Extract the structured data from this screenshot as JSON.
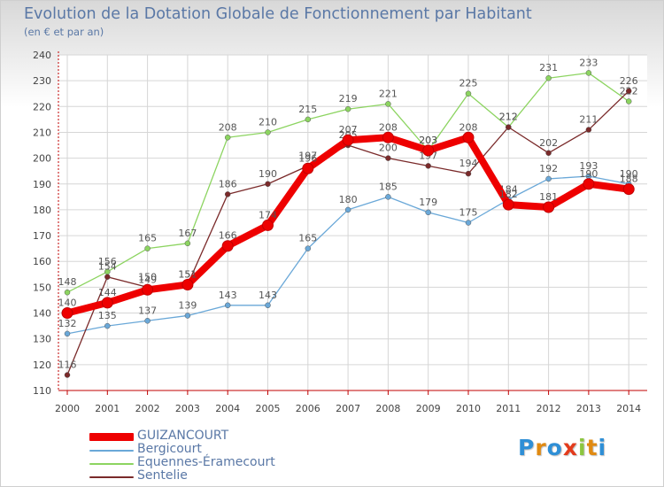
{
  "title": "Evolution de la Dotation Globale de Fonctionnement par Habitant",
  "subtitle": "(en € et par an)",
  "logo": {
    "letters": [
      "P",
      "r",
      "o",
      "x",
      "i",
      "t",
      "i"
    ],
    "colors": [
      "#2f8fd6",
      "#e08a12",
      "#2f8fd6",
      "#e33b1c",
      "#8cc63f",
      "#e08a12",
      "#2f8fd6"
    ]
  },
  "chart_data": {
    "type": "line",
    "x": [
      "2000",
      "2001",
      "2002",
      "2003",
      "2004",
      "2005",
      "2006",
      "2007",
      "2008",
      "2009",
      "2010",
      "2011",
      "2012",
      "2013",
      "2014"
    ],
    "ylim": [
      110,
      240
    ],
    "yticks": [
      110,
      120,
      130,
      140,
      150,
      160,
      170,
      180,
      190,
      200,
      210,
      220,
      230,
      240
    ],
    "grid": true,
    "legend_position": "bottom-left",
    "series": [
      {
        "name": "Equennes-Éramecourt",
        "color": "#8cd460",
        "values": [
          148,
          156,
          165,
          167,
          208,
          210,
          215,
          219,
          221,
          203,
          225,
          212,
          231,
          233,
          222
        ]
      },
      {
        "name": "Bergicourt",
        "color": "#6aa8d8",
        "values": [
          132,
          135,
          137,
          139,
          143,
          143,
          165,
          180,
          185,
          179,
          175,
          184,
          192,
          193,
          190
        ]
      },
      {
        "name": "Sentelie",
        "color": "#7a2a2a",
        "values": [
          116,
          154,
          150,
          151,
          186,
          190,
          197,
          205,
          200,
          197,
          194,
          212,
          202,
          211,
          226
        ]
      },
      {
        "name": "GUIZANCOURT",
        "color": "#ee0000",
        "values": [
          140,
          144,
          149,
          151,
          166,
          174,
          196,
          207,
          208,
          203,
          208,
          182,
          181,
          190,
          188
        ]
      }
    ]
  }
}
